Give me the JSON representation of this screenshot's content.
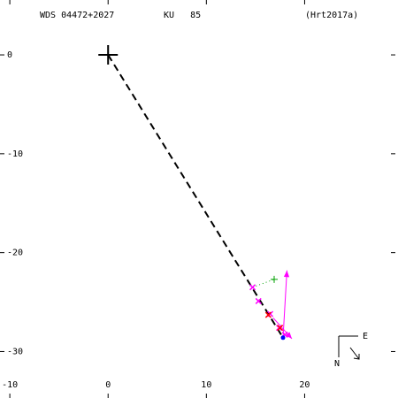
{
  "chart_data": {
    "type": "scatter",
    "header": {
      "wds": "WDS 04472+2027",
      "discoverer": "KU   85",
      "reference": "(Hrt2017a)"
    },
    "xlim": [
      -11,
      29.5
    ],
    "ylim": [
      -34.7,
      5.55
    ],
    "xticks": [
      -10,
      0,
      10,
      20
    ],
    "yticks": [
      0,
      -10,
      -20,
      -30
    ],
    "compass": {
      "east": "E",
      "north": "N"
    },
    "series": [
      {
        "marker": "dashed-line",
        "color": "#000000",
        "x": [
          0,
          17.8
        ],
        "y": [
          0,
          -28.6
        ]
      },
      {
        "marker": "dotted-line",
        "color": "#00a000",
        "x": [
          14.7,
          16.9
        ],
        "y": [
          -23.5,
          -22.7
        ]
      },
      {
        "marker": "arrow",
        "color": "#ff00ff",
        "x": [
          17.8,
          18.2
        ],
        "y": [
          -28.6,
          -21.8
        ]
      },
      {
        "marker": "arrow",
        "color": "#ff00ff",
        "x": [
          16.8,
          18.7
        ],
        "y": [
          -26.6,
          -28.7
        ]
      },
      {
        "marker": "big-plus",
        "color": "#000000",
        "x": [
          0
        ],
        "y": [
          0
        ]
      },
      {
        "marker": "x",
        "color": "#ff00ff",
        "x": [
          14.7,
          15.3,
          16.5,
          17.4,
          18.0
        ],
        "y": [
          -23.5,
          -24.9,
          -26.2,
          -27.6,
          -28.3
        ]
      },
      {
        "marker": "x",
        "color": "#ff0000",
        "x": [
          16.3,
          17.5
        ],
        "y": [
          -26.3,
          -27.6
        ]
      },
      {
        "marker": "plus",
        "color": "#00a000",
        "x": [
          16.9
        ],
        "y": [
          -22.7
        ]
      },
      {
        "marker": "dot",
        "color": "#0000ff",
        "x": [
          17.8
        ],
        "y": [
          -28.6
        ]
      }
    ]
  }
}
